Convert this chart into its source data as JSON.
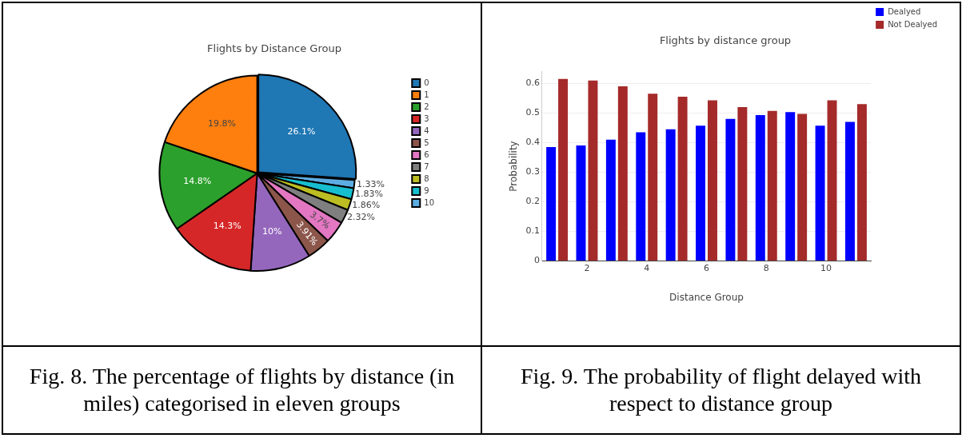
{
  "chart_data": [
    {
      "type": "pie",
      "title": "Flights by Distance Group",
      "categories": [
        "0",
        "1",
        "2",
        "3",
        "4",
        "5",
        "6",
        "7",
        "8",
        "9",
        "10"
      ],
      "values": [
        26.1,
        19.8,
        14.8,
        14.3,
        10,
        3.91,
        3.7,
        2.32,
        1.86,
        1.83,
        1.33
      ],
      "colors": [
        "#1f77b4",
        "#ff7f0e",
        "#2ca02c",
        "#d62728",
        "#9467bd",
        "#8c564b",
        "#e377c2",
        "#7f7f7f",
        "#bcbd22",
        "#17becf",
        "#5dade2"
      ],
      "value_labels": [
        "26.1%",
        "19.8%",
        "14.8%",
        "14.3%",
        "10%",
        "3.91%",
        "3.7%",
        "2.32%",
        "1.86%",
        "1.83%",
        "1.33%"
      ],
      "legend": "right",
      "annotations": [
        "Fig. 8. The percentage of flights by distance (in miles) categorised in eleven groups"
      ]
    },
    {
      "type": "bar",
      "title": "Flights by distance group",
      "xlabel": "Distance Group",
      "ylabel": "Probability",
      "x": [
        1,
        2,
        3,
        4,
        5,
        6,
        7,
        8,
        9,
        10,
        11
      ],
      "series": [
        {
          "name": "Dealyed",
          "color": "#0000ff",
          "values": [
            0.385,
            0.39,
            0.41,
            0.435,
            0.445,
            0.457,
            0.48,
            0.493,
            0.503,
            0.457,
            0.47
          ]
        },
        {
          "name": "Not Dealyed",
          "color": "#a52a2a",
          "values": [
            0.615,
            0.61,
            0.59,
            0.565,
            0.555,
            0.543,
            0.52,
            0.507,
            0.497,
            0.543,
            0.53
          ]
        }
      ],
      "xlim": [
        0.5,
        11.5
      ],
      "xticks": [
        2,
        4,
        6,
        8,
        10
      ],
      "ylim": [
        0,
        0.64
      ],
      "yticks": [
        0,
        0.1,
        0.2,
        0.3,
        0.4,
        0.5,
        0.6
      ],
      "grid": "y",
      "legend": "top right",
      "annotations": [
        "Fig. 9. The probability of flight delayed with respect to distance group"
      ]
    }
  ]
}
